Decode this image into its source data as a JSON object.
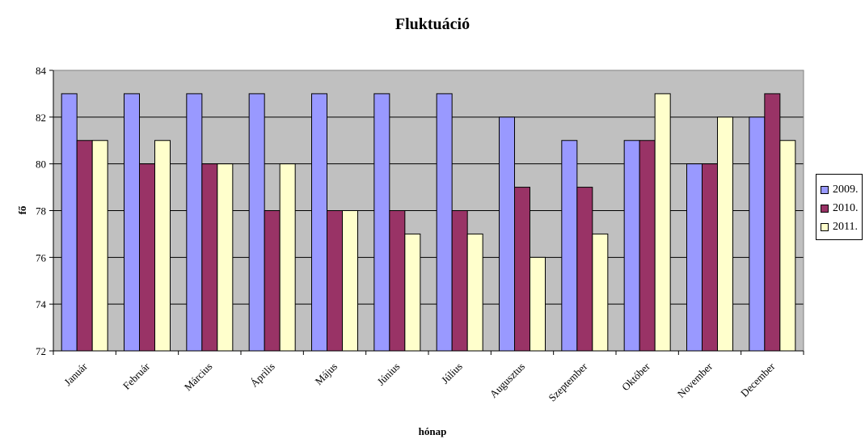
{
  "chart_data": {
    "type": "bar",
    "title": "Fluktuáció",
    "xlabel": "hónap",
    "ylabel": "fő",
    "ylim": [
      72,
      84
    ],
    "yticks": [
      72,
      74,
      76,
      78,
      80,
      82,
      84
    ],
    "grid": true,
    "legend_position": "right",
    "categories": [
      "Január",
      "Február",
      "Március",
      "Április",
      "Május",
      "Június",
      "Július",
      "Augusztus",
      "Szeptember",
      "Október",
      "November",
      "December"
    ],
    "series": [
      {
        "name": "2009.",
        "color": "#9999FF",
        "values": [
          83,
          83,
          83,
          83,
          83,
          83,
          83,
          82,
          81,
          81,
          80,
          82
        ]
      },
      {
        "name": "2010.",
        "color": "#993366",
        "values": [
          81,
          80,
          80,
          78,
          78,
          78,
          78,
          79,
          79,
          81,
          80,
          83
        ]
      },
      {
        "name": "2011.",
        "color": "#FFFFCC",
        "values": [
          81,
          81,
          80,
          80,
          78,
          77,
          77,
          76,
          77,
          83,
          82,
          81
        ]
      }
    ],
    "plot_background": "#C0C0C0"
  }
}
